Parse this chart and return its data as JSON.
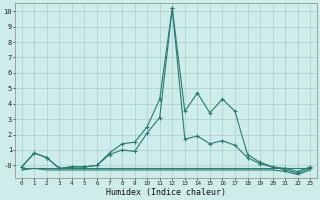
{
  "xlabel": "Humidex (Indice chaleur)",
  "x": [
    0,
    1,
    2,
    3,
    4,
    5,
    6,
    7,
    8,
    9,
    10,
    11,
    12,
    13,
    14,
    15,
    16,
    17,
    18,
    19,
    20,
    21,
    22,
    23
  ],
  "line1": [
    -0.1,
    0.8,
    0.5,
    -0.2,
    -0.1,
    -0.1,
    0.0,
    0.8,
    1.4,
    1.5,
    2.5,
    4.3,
    10.2,
    3.5,
    4.7,
    3.4,
    4.3,
    3.5,
    0.7,
    0.2,
    -0.1,
    -0.3,
    -0.5,
    -0.2
  ],
  "line2": [
    -0.1,
    0.8,
    0.5,
    -0.2,
    -0.1,
    -0.1,
    0.0,
    0.7,
    1.0,
    0.9,
    2.1,
    3.1,
    10.2,
    1.7,
    1.9,
    1.4,
    1.6,
    1.3,
    0.5,
    0.1,
    -0.1,
    -0.2,
    -0.4,
    -0.1
  ],
  "line3": [
    -0.2,
    -0.2,
    -0.2,
    -0.2,
    -0.2,
    -0.2,
    -0.2,
    -0.2,
    -0.2,
    -0.2,
    -0.2,
    -0.2,
    -0.2,
    -0.2,
    -0.2,
    -0.2,
    -0.2,
    -0.2,
    -0.2,
    -0.2,
    -0.2,
    -0.2,
    -0.2,
    -0.2
  ],
  "line4": [
    -0.3,
    -0.2,
    -0.3,
    -0.3,
    -0.3,
    -0.3,
    -0.3,
    -0.3,
    -0.3,
    -0.3,
    -0.3,
    -0.3,
    -0.3,
    -0.3,
    -0.3,
    -0.3,
    -0.3,
    -0.3,
    -0.3,
    -0.3,
    -0.3,
    -0.4,
    -0.6,
    -0.3
  ],
  "line_color": "#2a7a72",
  "bg_color": "#ceecea",
  "grid_color": "#aacfcc",
  "ylim": [
    -0.8,
    10.5
  ],
  "yticks": [
    0,
    1,
    2,
    3,
    4,
    5,
    6,
    7,
    8,
    9,
    10
  ],
  "ytick_labels": [
    "-0",
    "1",
    "2",
    "3",
    "4",
    "5",
    "6",
    "7",
    "8",
    "9",
    "10"
  ],
  "xlim": [
    -0.5,
    23.5
  ]
}
